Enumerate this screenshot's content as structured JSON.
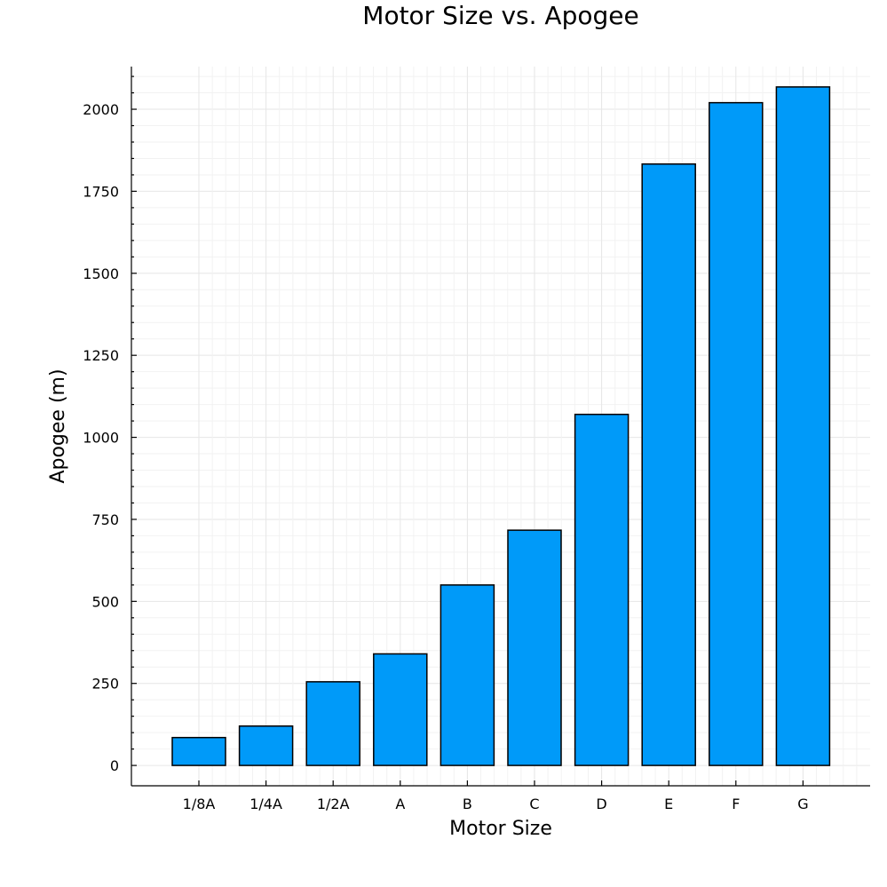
{
  "chart_data": {
    "type": "bar",
    "title": "Motor Size vs. Apogee",
    "xlabel": "Motor Size",
    "ylabel": "Apogee (m)",
    "categories": [
      "1/8A",
      "1/4A",
      "1/2A",
      "A",
      "B",
      "C",
      "D",
      "E",
      "F",
      "G"
    ],
    "values": [
      85,
      120,
      255,
      340,
      550,
      717,
      1070,
      1833,
      2020,
      2068
    ],
    "ylim": [
      -62,
      2130
    ],
    "yticks": [
      0,
      250,
      500,
      750,
      1000,
      1250,
      1500,
      1750,
      2000
    ],
    "bar_color": "#009af9",
    "grid": true,
    "legend": "none"
  }
}
